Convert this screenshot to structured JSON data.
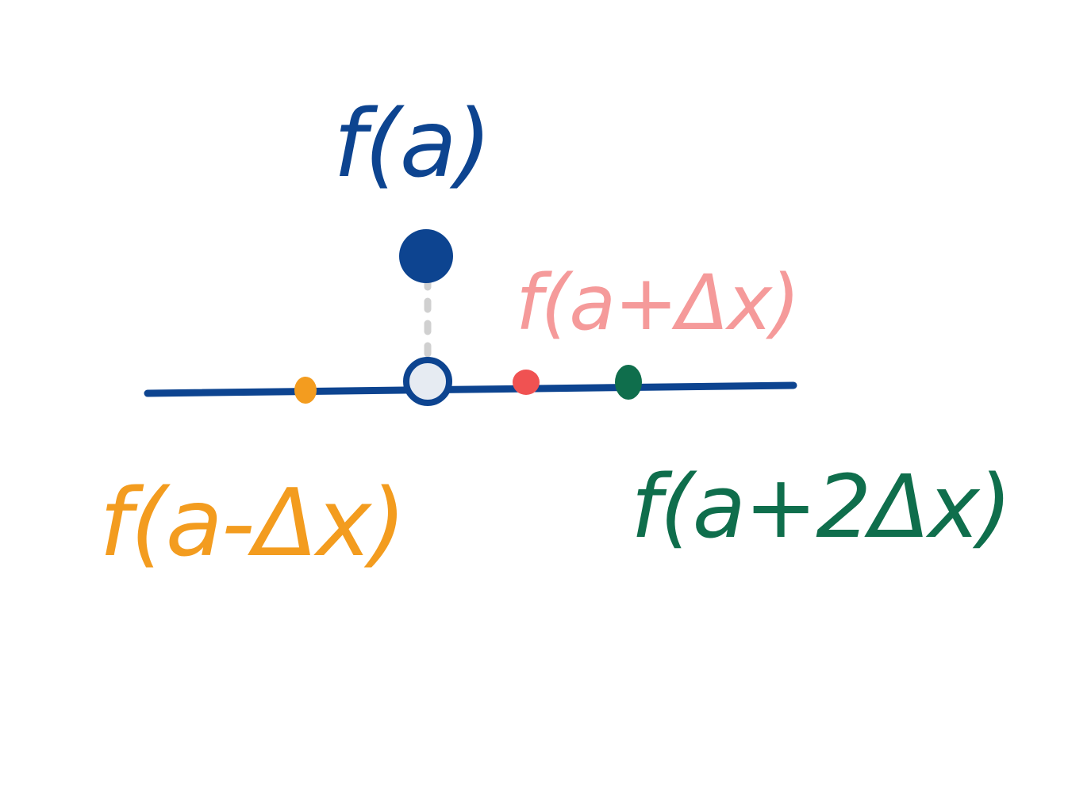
{
  "labels": {
    "fa": "f(a)",
    "fa_plus_dx": "f(a+Δx)",
    "fa_minus_dx": "f(a-Δx)",
    "fa_plus_2dx": "f(a+2Δx)"
  },
  "colors": {
    "blue": "#0d4490",
    "pink": "#f59a9a",
    "red": "#f05252",
    "orange": "#f39c1f",
    "green": "#0f6e4c",
    "dotted": "#d0d0d0",
    "hollow_fill": "#e6ebf2"
  }
}
